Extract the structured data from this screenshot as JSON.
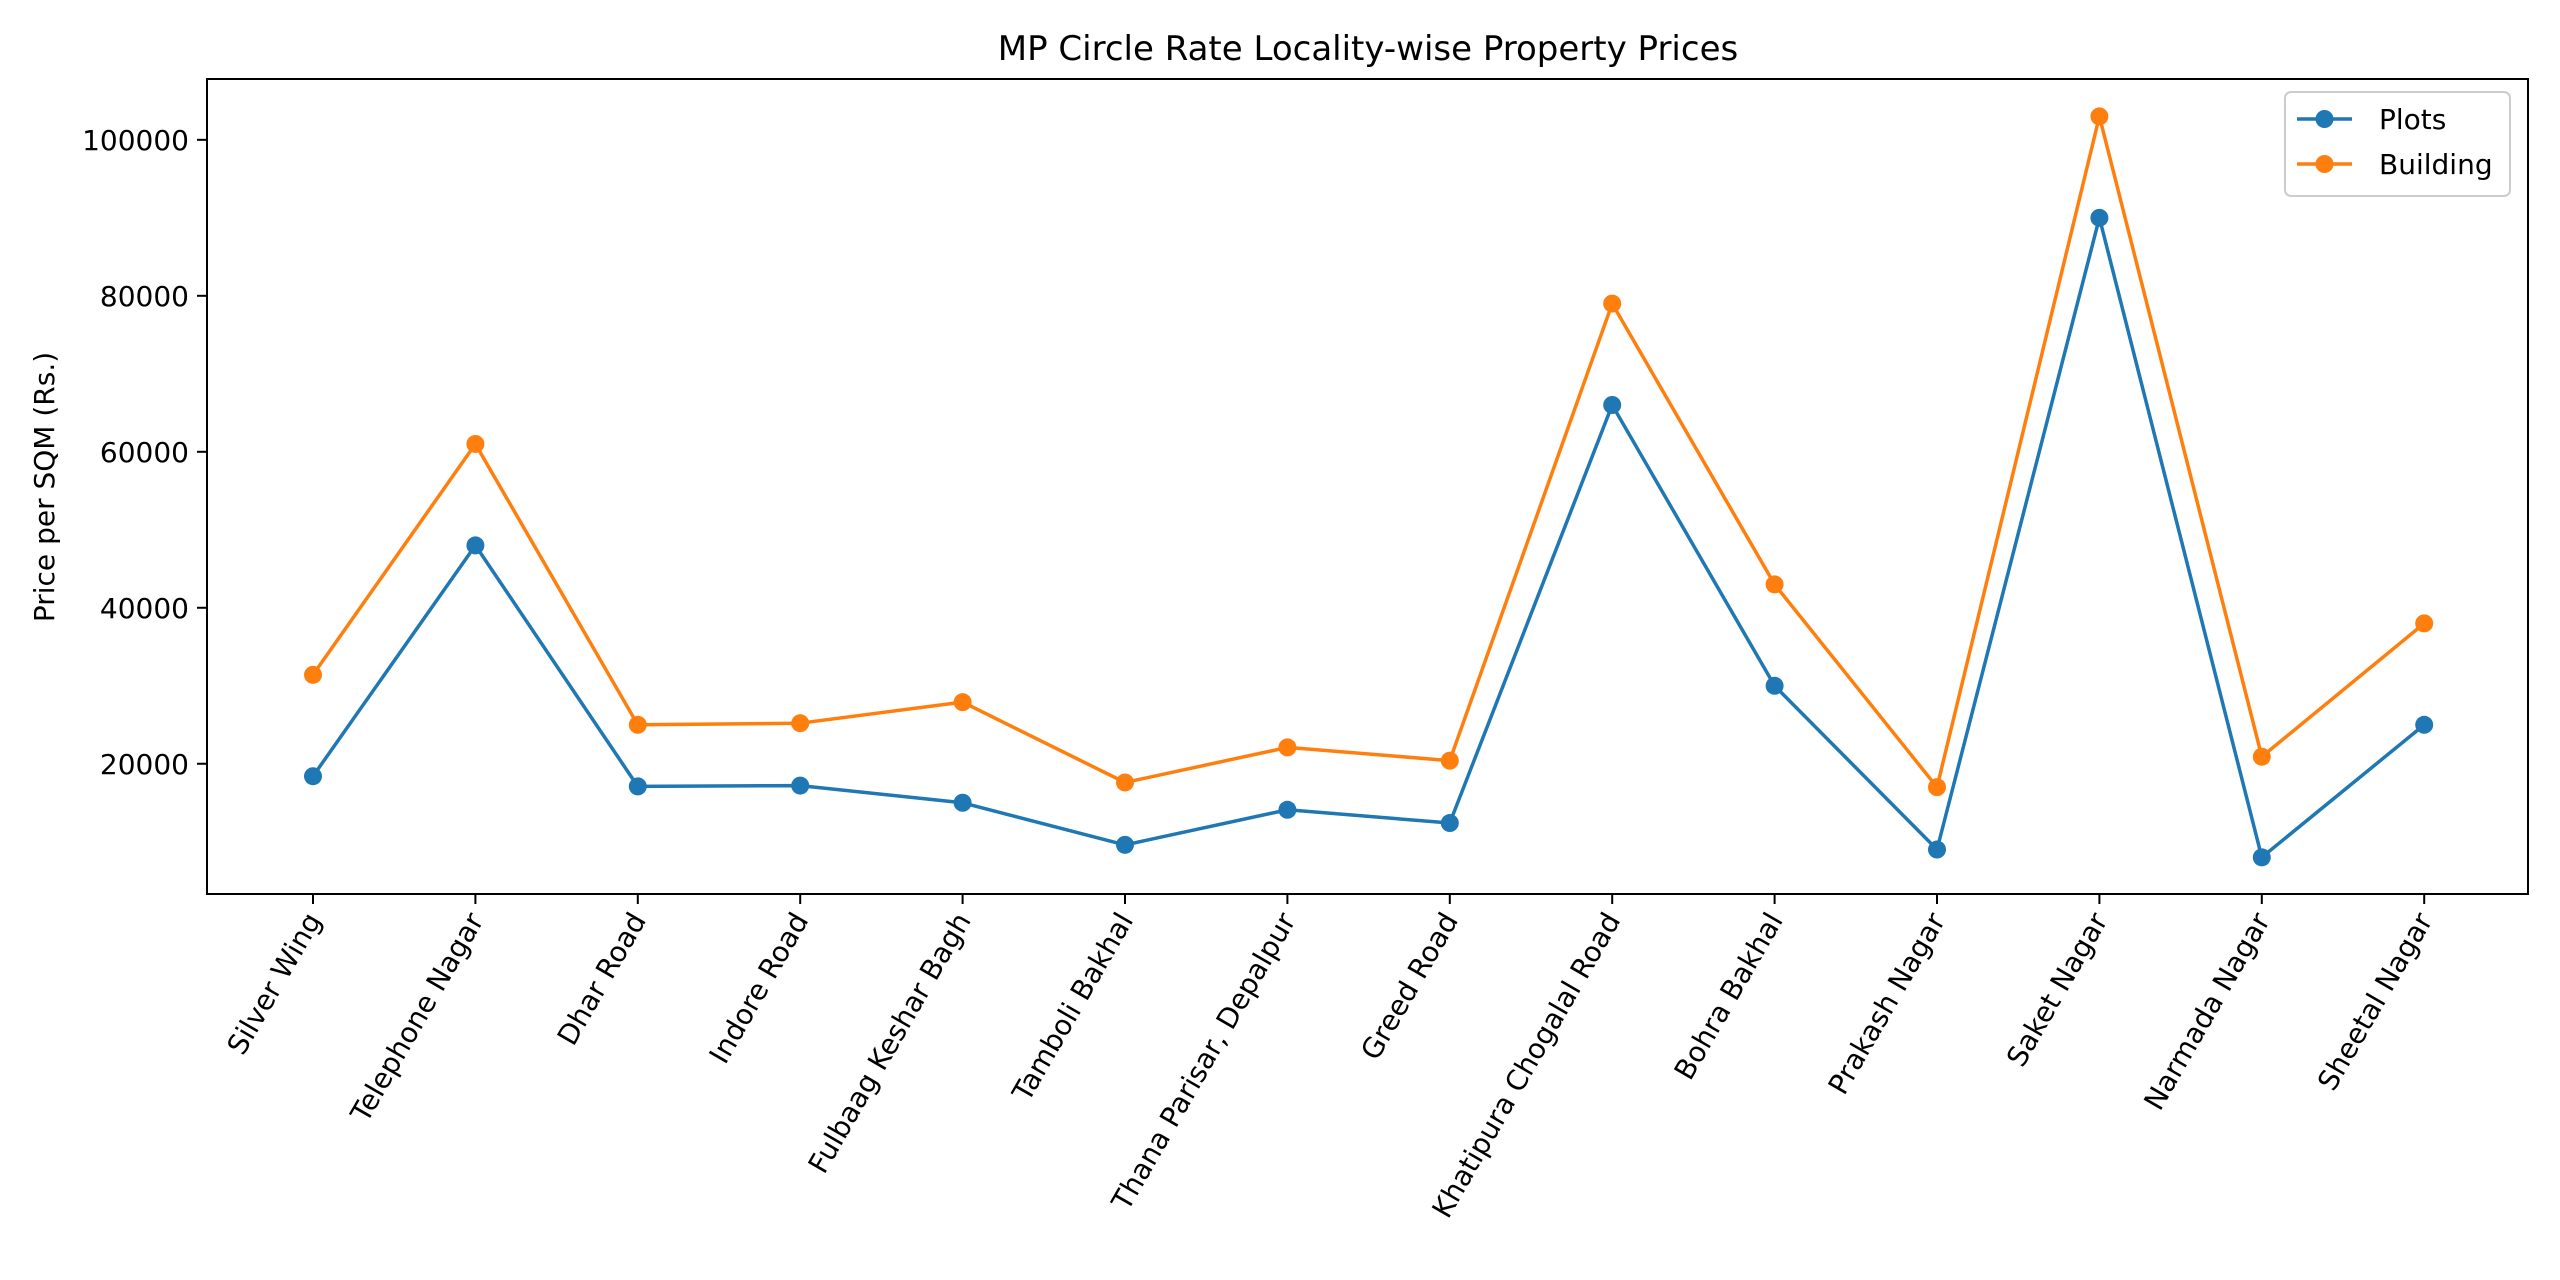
{
  "chart_data": {
    "type": "line",
    "title": "MP Circle Rate Locality-wise Property Prices",
    "xlabel": "",
    "ylabel": "Price per SQM (Rs.)",
    "categories": [
      "Silver Wing",
      "Telephone Nagar",
      "Dhar Road",
      "Indore Road",
      "Fulbaag Keshar Bagh",
      "Tamboli Bakhal",
      "Thana Parisar, Depalpur",
      "Greed Road",
      "Khatipura Chogalal Road",
      "Bohra Bakhal",
      "Prakash Nagar",
      "Saket Nagar",
      "Narmada Nagar",
      "Sheetal Nagar"
    ],
    "series": [
      {
        "name": "Plots",
        "color": "#1f77b4",
        "values": [
          18400,
          48000,
          17100,
          17200,
          15000,
          9600,
          14100,
          12400,
          66000,
          30000,
          9000,
          90000,
          8000,
          25000
        ]
      },
      {
        "name": "Building",
        "color": "#ff7f0e",
        "values": [
          31400,
          61000,
          25000,
          25200,
          27900,
          17600,
          22100,
          20400,
          79000,
          43000,
          17000,
          103000,
          20900,
          38000
        ]
      }
    ],
    "ylim": [
      3300,
      107800
    ],
    "yticks": [
      20000,
      40000,
      60000,
      80000,
      100000
    ],
    "ytick_labels": [
      "20000",
      "40000",
      "60000",
      "80000",
      "100000"
    ],
    "grid": false,
    "legend": "top-right"
  }
}
